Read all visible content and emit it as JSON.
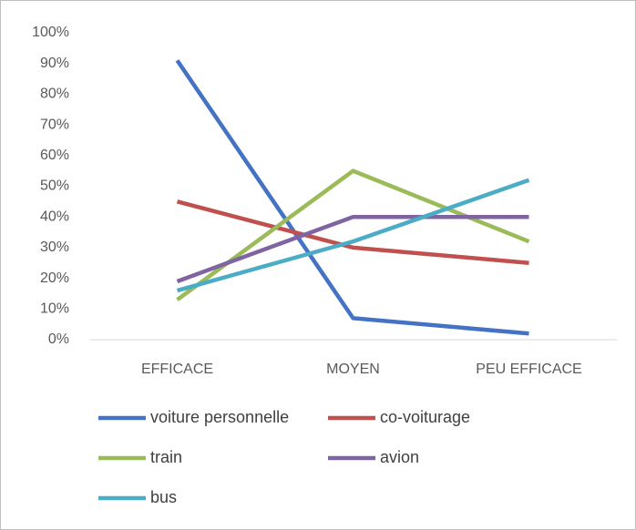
{
  "chart_data": {
    "type": "line",
    "categories": [
      "EFFICACE",
      "MOYEN",
      "PEU EFFICACE"
    ],
    "series": [
      {
        "name": "voiture personnelle",
        "color": "#4472c4",
        "values": [
          91,
          7,
          2
        ]
      },
      {
        "name": "co-voiturage",
        "color": "#c0504d",
        "values": [
          45,
          30,
          25
        ]
      },
      {
        "name": "train",
        "color": "#9bbb59",
        "values": [
          13,
          55,
          32
        ]
      },
      {
        "name": "avion",
        "color": "#8064a2",
        "values": [
          19,
          40,
          40
        ]
      },
      {
        "name": "bus",
        "color": "#4bacc6",
        "values": [
          16,
          32,
          52
        ]
      }
    ],
    "ylim": [
      0,
      100
    ],
    "yticks": [
      {
        "value": 0,
        "label": "0%"
      },
      {
        "value": 10,
        "label": "10%"
      },
      {
        "value": 20,
        "label": "20%"
      },
      {
        "value": 30,
        "label": "30%"
      },
      {
        "value": 40,
        "label": "40%"
      },
      {
        "value": 50,
        "label": "50%"
      },
      {
        "value": 60,
        "label": "60%"
      },
      {
        "value": 70,
        "label": "70%"
      },
      {
        "value": 80,
        "label": "80%"
      },
      {
        "value": 90,
        "label": "90%"
      },
      {
        "value": 100,
        "label": "100%"
      }
    ],
    "grid": false,
    "legend": "bottom"
  }
}
